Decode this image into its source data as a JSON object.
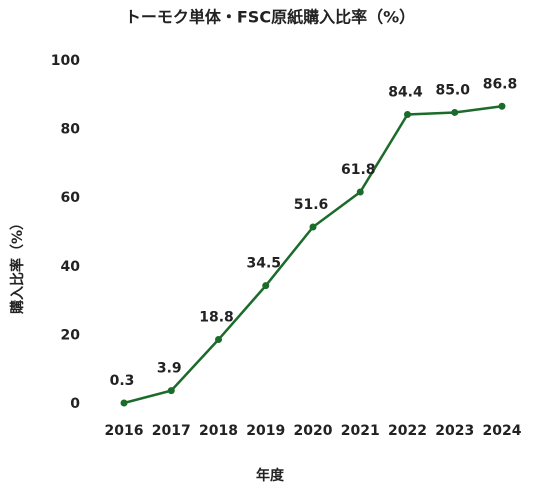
{
  "chart_data": {
    "type": "line",
    "title": "トーモク単体・FSC原紙購入比率（%）",
    "x_label": "年度",
    "y_label": "購入比率（%）",
    "categories": [
      "2016",
      "2017",
      "2018",
      "2019",
      "2020",
      "2021",
      "2022",
      "2023",
      "2024"
    ],
    "series": [
      {
        "name": "購入比率",
        "color": "#1b6b2a",
        "values": [
          0.3,
          3.9,
          18.8,
          34.5,
          51.6,
          61.8,
          84.4,
          85.0,
          86.8
        ],
        "value_labels": [
          "0.3",
          "3.9",
          "18.8",
          "34.5",
          "51.6",
          "61.8",
          "84.4",
          "85.0",
          "86.8"
        ]
      }
    ],
    "ylim": [
      0,
      100
    ],
    "yticks": [
      0,
      20,
      40,
      60,
      80,
      100
    ],
    "grid": false
  }
}
